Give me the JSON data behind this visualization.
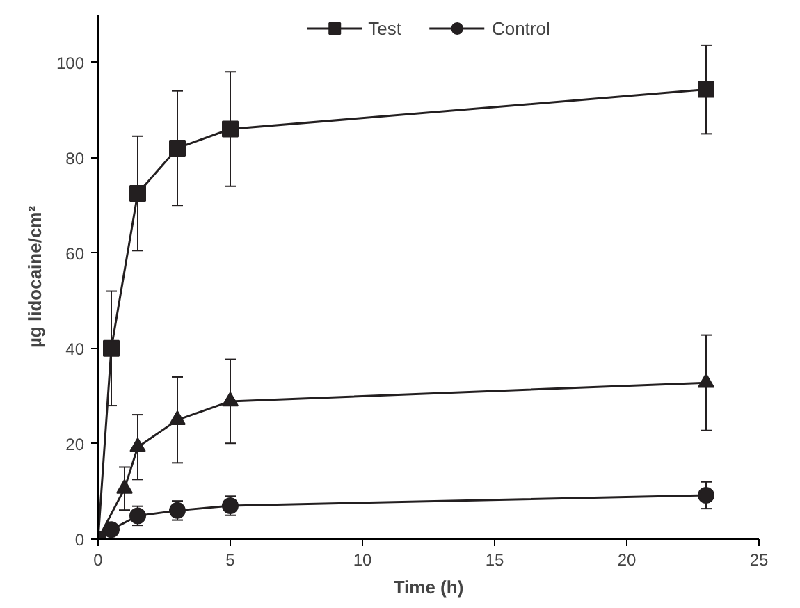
{
  "chart_data": {
    "type": "line",
    "xlabel": "Time (h)",
    "ylabel": "µg lidocaine/cm²",
    "xlim": [
      0,
      25
    ],
    "xticks": [
      0,
      5,
      10,
      15,
      20,
      25
    ],
    "ylim": [
      0,
      110
    ],
    "yticks": [
      0,
      20,
      40,
      60,
      80,
      100
    ],
    "grid": false,
    "legend": "top",
    "line_style": "solid",
    "series": [
      {
        "name": "Test",
        "color": "#231f20",
        "marker": "square",
        "x": [
          0,
          0.5,
          1.5,
          3,
          5,
          23
        ],
        "values": [
          0,
          40,
          72.5,
          82,
          86,
          94.3
        ],
        "errors": [
          null,
          12,
          12,
          12,
          12,
          9.3
        ]
      },
      {
        "name": "Control",
        "color": "#231f20",
        "marker": "circle",
        "x": [
          0,
          0.5,
          1.5,
          3,
          5,
          23
        ],
        "values": [
          0,
          2,
          4.9,
          6,
          7,
          9.2
        ],
        "errors": [
          null,
          null,
          2,
          2,
          2,
          2.8
        ]
      },
      {
        "color": "#231f20",
        "marker": "triangle",
        "x": [
          0,
          1,
          1.5,
          3,
          5,
          23
        ],
        "values": [
          0,
          10.6,
          19.3,
          25,
          28.9,
          32.8
        ],
        "errors": [
          null,
          4.5,
          6.8,
          9,
          8.8,
          10
        ]
      }
    ]
  }
}
